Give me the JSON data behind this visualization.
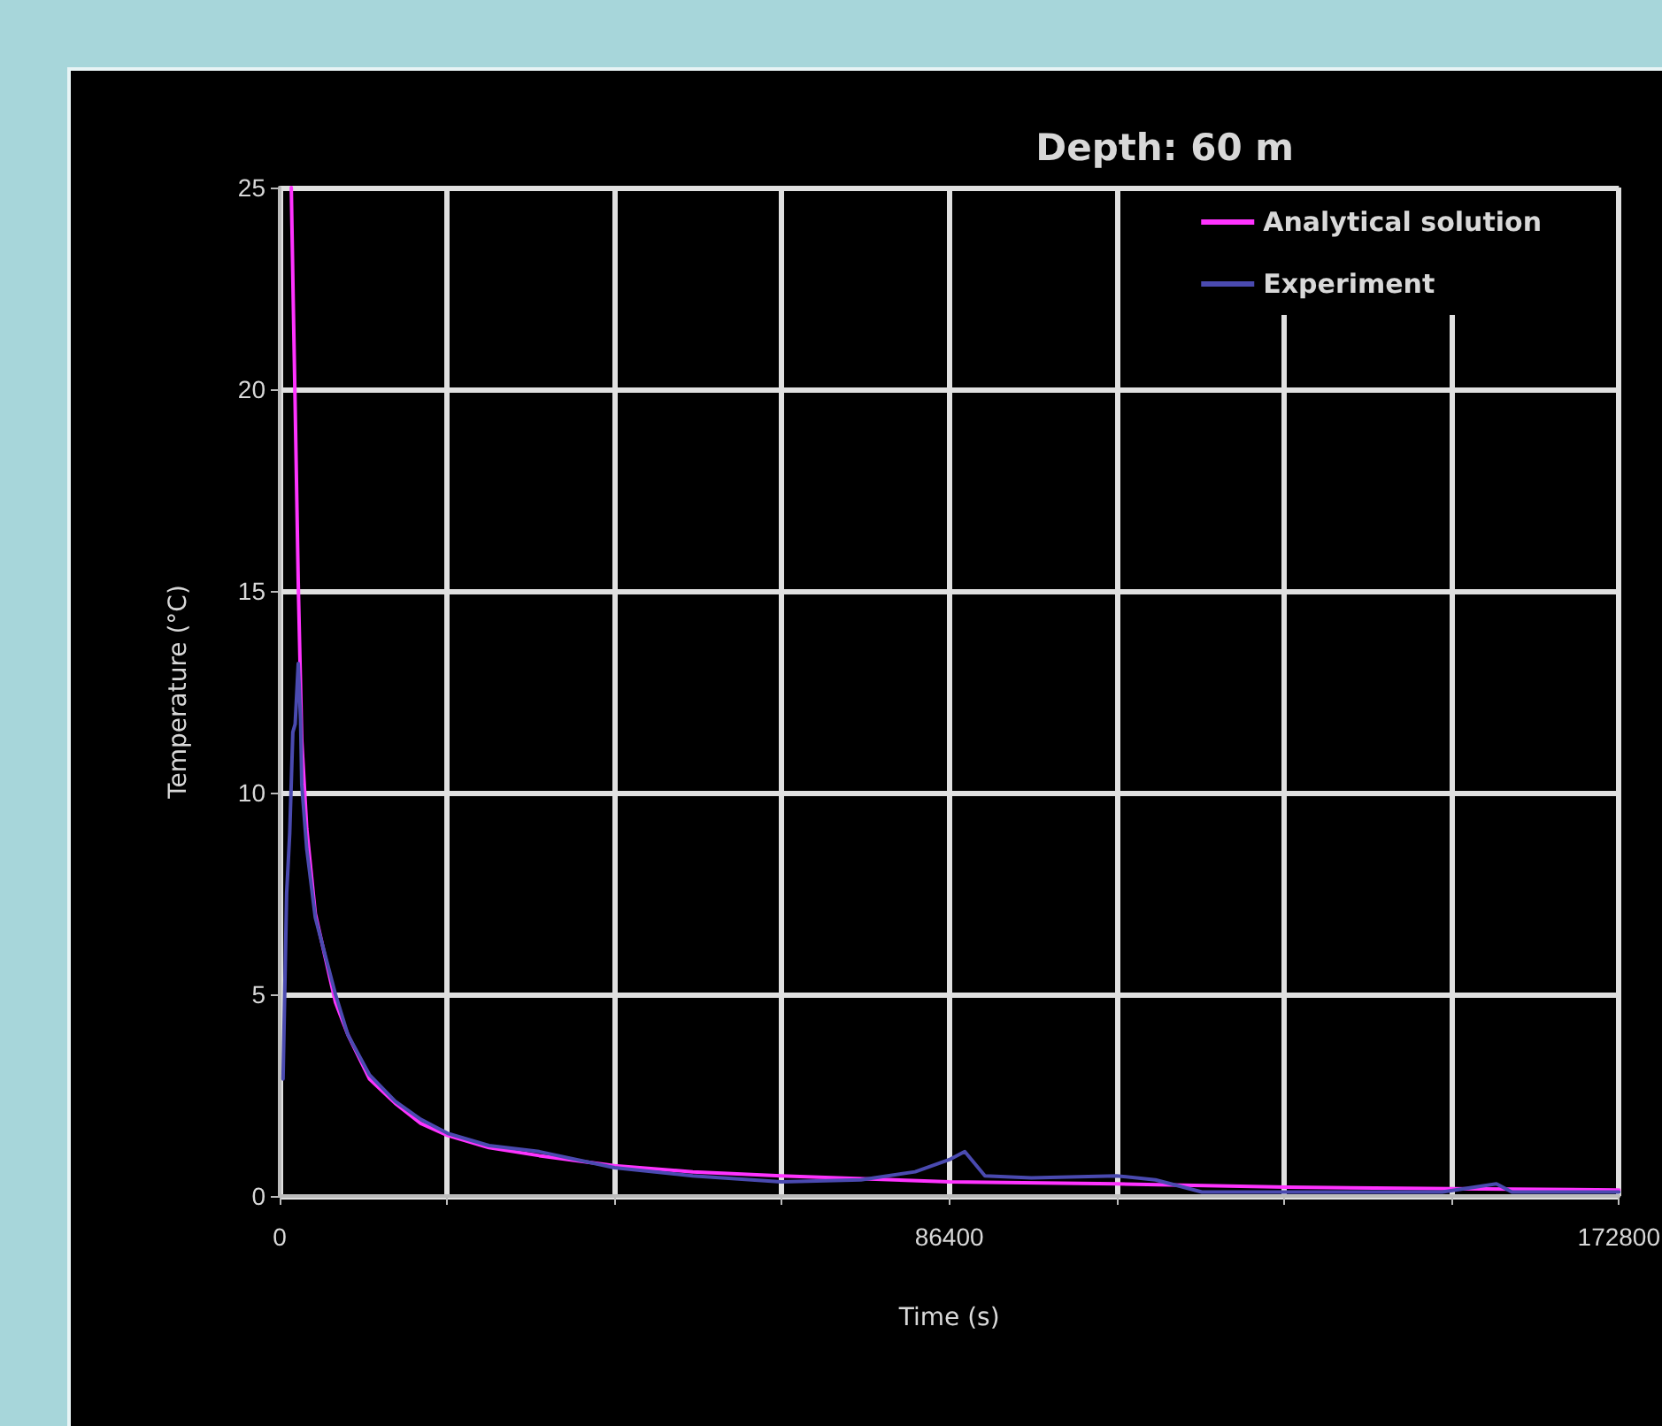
{
  "chart_data": {
    "type": "line",
    "legend_title": "Depth: 60 m",
    "xlabel": "Time (s)",
    "ylabel": "Temperature (°C)",
    "xlim": [
      0,
      172800
    ],
    "xticks": [
      0,
      {
        "value": 21600,
        "label": null
      },
      {
        "value": 43200,
        "label": null
      },
      {
        "value": 64800,
        "label": null
      },
      86400,
      {
        "value": 108000,
        "label": null
      },
      {
        "value": 129600,
        "label": null
      },
      {
        "value": 151200,
        "label": null
      },
      172800
    ],
    "ylim": [
      0,
      25
    ],
    "yticks": [
      0,
      5,
      10,
      15,
      20,
      25
    ],
    "grid": true,
    "legend": "top right",
    "marker": "none",
    "line_style": "solid",
    "series": [
      {
        "name": "Analytical solution",
        "color": "#ff33ff",
        "x": [
          1500,
          1750,
          2000,
          2400,
          2850,
          3500,
          4600,
          7200,
          8800,
          11600,
          14900,
          18200,
          21700,
          27000,
          33500,
          43200,
          53300,
          64700,
          86400,
          108000,
          130000,
          151200,
          172800
        ],
        "values": [
          25,
          22.2,
          19.6,
          15.2,
          11.3,
          9.1,
          7.0,
          4.8,
          4.0,
          2.9,
          2.3,
          1.8,
          1.5,
          1.2,
          1.0,
          0.75,
          0.6,
          0.5,
          0.35,
          0.3,
          0.22,
          0.18,
          0.15
        ]
      },
      {
        "name": "Experiment",
        "color": "#4a4ab0",
        "x": [
          440,
          900,
          1300,
          1700,
          2000,
          2400,
          2700,
          2850,
          3500,
          4600,
          7200,
          8800,
          11600,
          14900,
          18200,
          21700,
          27000,
          33500,
          43200,
          53300,
          64700,
          75000,
          82000,
          86400,
          88400,
          91000,
          97000,
          108000,
          113000,
          119000,
          130000,
          150000,
          157000,
          159000,
          172800
        ],
        "values": [
          2.9,
          7.5,
          9.0,
          11.5,
          11.7,
          13.2,
          11.8,
          10.2,
          8.6,
          6.9,
          5.0,
          4.0,
          3.0,
          2.35,
          1.9,
          1.55,
          1.25,
          1.1,
          0.7,
          0.5,
          0.35,
          0.4,
          0.6,
          0.9,
          1.1,
          0.5,
          0.45,
          0.5,
          0.4,
          0.1,
          0.1,
          0.1,
          0.3,
          0.1,
          0.1
        ]
      }
    ]
  }
}
